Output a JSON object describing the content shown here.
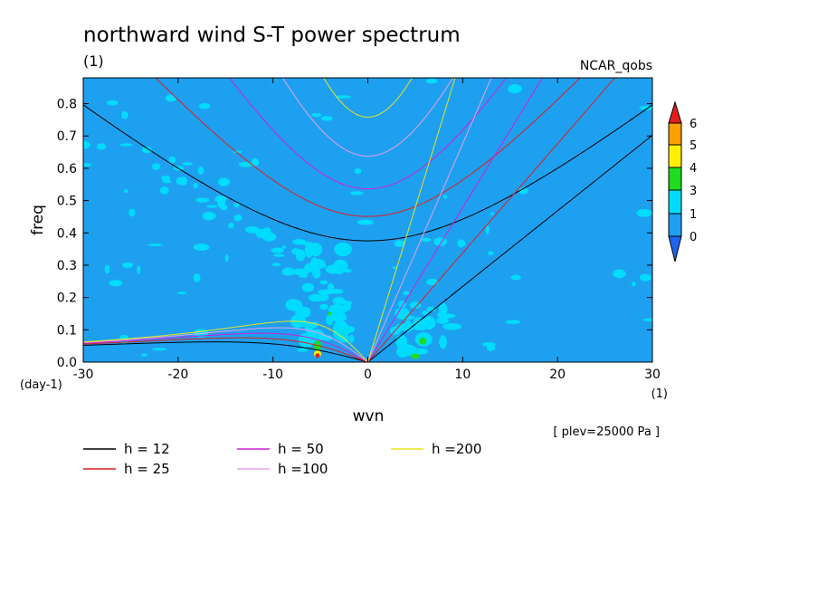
{
  "chart_data": {
    "type": "heatmap",
    "title": "northward wind S-T power spectrum",
    "subtitle_left": "(1)",
    "subtitle_right": "NCAR_qobs",
    "xlabel": "wvn",
    "ylabel": "freq",
    "x_unit": "(1)",
    "y_unit": "(day-1)",
    "annotation": "[ plev=25000 Pa ]",
    "xlim": [
      -30,
      30
    ],
    "ylim": [
      0,
      0.88
    ],
    "xticks": [
      "-30",
      "-20",
      "-10",
      "0",
      "10",
      "20",
      "30"
    ],
    "yticks": [
      "0.0",
      "0.1",
      "0.2",
      "0.3",
      "0.4",
      "0.5",
      "0.6",
      "0.7",
      "0.8"
    ],
    "colorbar": {
      "levels": [
        "0",
        "1",
        "3",
        "4",
        "5",
        "6"
      ],
      "colors": [
        "#1E64F0",
        "#1EA0F0",
        "#00DCFF",
        "#1EDC1E",
        "#FFF000",
        "#FFA000",
        "#E61E1E"
      ]
    },
    "background_color": "#1EA0F0",
    "dispersion_curves": [
      {
        "name": "h = 12",
        "color": "#000000"
      },
      {
        "name": "h = 25",
        "color": "#DC1E1E"
      },
      {
        "name": "h = 50",
        "color": "#D21ED2"
      },
      {
        "name": "h =100",
        "color": "#E6A0E6"
      },
      {
        "name": "h =200",
        "color": "#E6E61E"
      }
    ]
  }
}
